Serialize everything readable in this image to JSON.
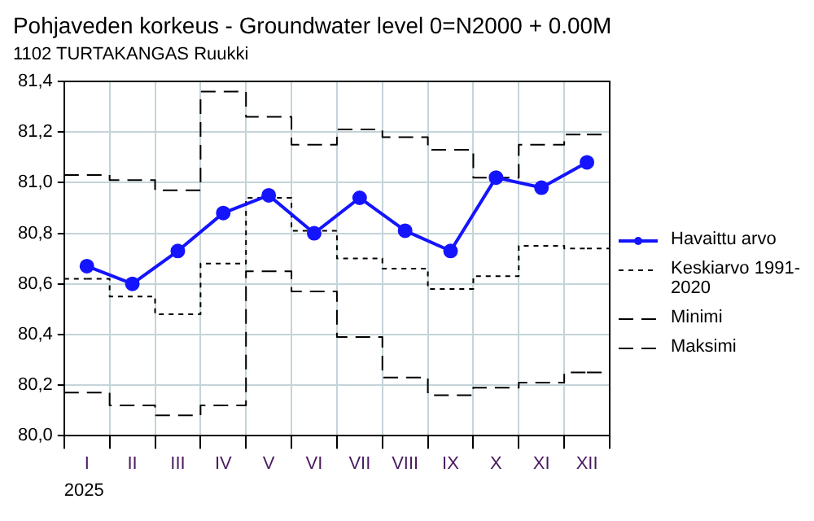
{
  "chart_data": {
    "type": "line",
    "title": "Pohjaveden korkeus - Groundwater level 0=N2000 + 0.00M",
    "subtitle": "1102 TURTAKANGAS Ruukki",
    "xlabel": "2025",
    "categories": [
      "I",
      "II",
      "III",
      "IV",
      "V",
      "VI",
      "VII",
      "VIII",
      "IX",
      "X",
      "XI",
      "XII"
    ],
    "series": [
      {
        "name": "Havaittu arvo",
        "type": "line",
        "color": "#1414ff",
        "marker": "circle",
        "line_style": "solid",
        "values": [
          80.67,
          80.6,
          80.73,
          80.88,
          80.95,
          80.8,
          80.94,
          80.81,
          80.73,
          81.02,
          80.98,
          81.08
        ]
      },
      {
        "name": "Keskiarvo 1991-2020",
        "type": "step",
        "color": "#000000",
        "marker": "none",
        "line_style": "dotted",
        "values": [
          80.62,
          80.55,
          80.48,
          80.68,
          80.94,
          80.81,
          80.7,
          80.66,
          80.58,
          80.63,
          80.75,
          80.74
        ]
      },
      {
        "name": "Minimi",
        "type": "step",
        "color": "#000000",
        "marker": "none",
        "line_style": "dashed",
        "values": [
          80.17,
          80.12,
          80.08,
          80.12,
          80.65,
          80.57,
          80.39,
          80.23,
          80.16,
          80.19,
          80.21,
          80.25
        ]
      },
      {
        "name": "Maksimi",
        "type": "step",
        "color": "#000000",
        "marker": "none",
        "line_style": "dashed",
        "values": [
          81.03,
          81.01,
          80.97,
          81.36,
          81.26,
          81.15,
          81.21,
          81.18,
          81.13,
          81.02,
          81.15,
          81.19
        ]
      }
    ],
    "ylim": [
      80.0,
      81.4
    ],
    "yticks": [
      {
        "value": 80.0,
        "label": "80,0"
      },
      {
        "value": 80.2,
        "label": "80,2"
      },
      {
        "value": 80.4,
        "label": "80,4"
      },
      {
        "value": 80.6,
        "label": "80,6"
      },
      {
        "value": 80.8,
        "label": "80,8"
      },
      {
        "value": 81.0,
        "label": "81,0"
      },
      {
        "value": 81.2,
        "label": "81,2"
      },
      {
        "value": 81.4,
        "label": "81,4"
      }
    ],
    "grid": true,
    "legend": "right"
  }
}
